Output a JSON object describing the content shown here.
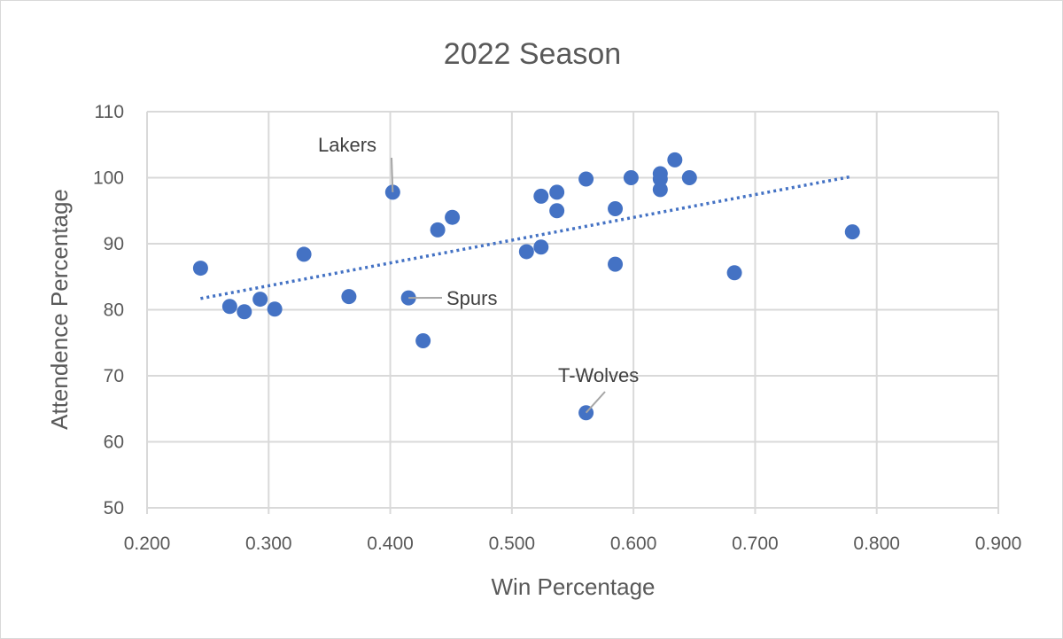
{
  "chart_data": {
    "type": "scatter",
    "title": "2022 Season",
    "xlabel": "Win Percentage",
    "ylabel": "Attendence Percentage",
    "xlim": [
      0.2,
      0.9
    ],
    "ylim": [
      50,
      110
    ],
    "xticks": [
      "0.200",
      "0.300",
      "0.400",
      "0.500",
      "0.600",
      "0.700",
      "0.800",
      "0.900"
    ],
    "yticks": [
      "50",
      "60",
      "70",
      "80",
      "90",
      "100",
      "110"
    ],
    "grid": true,
    "marker_color": "#4472c4",
    "trendline": {
      "type": "linear",
      "style": "dotted",
      "color": "#4472c4",
      "from": [
        0.244,
        81.7
      ],
      "to": [
        0.78,
        100.2
      ]
    },
    "points": [
      {
        "x": 0.244,
        "y": 86.3
      },
      {
        "x": 0.268,
        "y": 80.5
      },
      {
        "x": 0.28,
        "y": 79.7
      },
      {
        "x": 0.293,
        "y": 81.6
      },
      {
        "x": 0.305,
        "y": 80.1
      },
      {
        "x": 0.329,
        "y": 88.4
      },
      {
        "x": 0.366,
        "y": 82.0
      },
      {
        "x": 0.402,
        "y": 97.8
      },
      {
        "x": 0.415,
        "y": 81.8
      },
      {
        "x": 0.427,
        "y": 75.3
      },
      {
        "x": 0.439,
        "y": 92.1
      },
      {
        "x": 0.451,
        "y": 94.0
      },
      {
        "x": 0.512,
        "y": 88.8
      },
      {
        "x": 0.524,
        "y": 89.5
      },
      {
        "x": 0.524,
        "y": 97.2
      },
      {
        "x": 0.537,
        "y": 97.8
      },
      {
        "x": 0.537,
        "y": 95.0
      },
      {
        "x": 0.561,
        "y": 99.8
      },
      {
        "x": 0.561,
        "y": 64.4
      },
      {
        "x": 0.585,
        "y": 95.3
      },
      {
        "x": 0.585,
        "y": 86.9
      },
      {
        "x": 0.598,
        "y": 100.0
      },
      {
        "x": 0.622,
        "y": 100.6
      },
      {
        "x": 0.622,
        "y": 99.8
      },
      {
        "x": 0.622,
        "y": 98.2
      },
      {
        "x": 0.634,
        "y": 102.7
      },
      {
        "x": 0.646,
        "y": 100.0
      },
      {
        "x": 0.683,
        "y": 85.6
      },
      {
        "x": 0.78,
        "y": 91.8
      }
    ],
    "annotations": [
      {
        "text": "Lakers",
        "point": [
          0.402,
          97.8
        ]
      },
      {
        "text": "Spurs",
        "point": [
          0.415,
          81.8
        ]
      },
      {
        "text": "T-Wolves",
        "point": [
          0.561,
          64.4
        ]
      }
    ]
  }
}
